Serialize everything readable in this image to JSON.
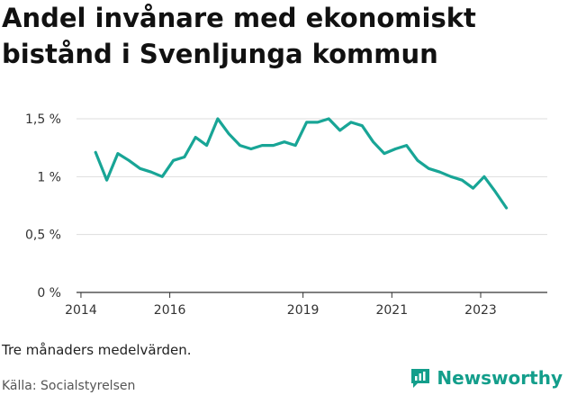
{
  "title": "Andel invånare med ekonomiskt bistånd i Svenljunga kommun",
  "footnote": "Tre månaders medelvärden.",
  "source": "Källa: Socialstyrelsen",
  "brand": {
    "name": "Newsworthy",
    "icon": "bar-chart-icon"
  },
  "colors": {
    "line": "#18a596",
    "brand": "#139e8b",
    "grid": "#dddddd"
  },
  "chart_data": {
    "type": "line",
    "title": "Andel invånare med ekonomiskt bistånd i Svenljunga kommun",
    "xlabel": "",
    "ylabel": "",
    "xlim": [
      2013.9,
      2024.5
    ],
    "ylim": [
      0,
      1.5
    ],
    "grid": true,
    "legend": "none",
    "x_ticks": [
      {
        "value": 2014,
        "label": "2014"
      },
      {
        "value": 2016,
        "label": "2016"
      },
      {
        "value": 2019,
        "label": "2019"
      },
      {
        "value": 2021,
        "label": "2021"
      },
      {
        "value": 2023,
        "label": "2023"
      }
    ],
    "y_ticks": [
      {
        "value": 0,
        "label": "0 %"
      },
      {
        "value": 0.5,
        "label": "0,5 %"
      },
      {
        "value": 1.0,
        "label": "1 %"
      },
      {
        "value": 1.5,
        "label": "1,5 %"
      }
    ],
    "series": [
      {
        "x": [
          2014.33,
          2014.58,
          2014.83,
          2015.08,
          2015.33,
          2015.58,
          2015.83,
          2016.08,
          2016.33,
          2016.58,
          2016.83,
          2017.08,
          2017.33,
          2017.58,
          2017.83,
          2018.08,
          2018.33,
          2018.58,
          2018.83,
          2019.08,
          2019.33,
          2019.58,
          2019.83,
          2020.08,
          2020.33,
          2020.58,
          2020.83,
          2021.08,
          2021.33,
          2021.58,
          2021.83,
          2022.08,
          2022.33,
          2022.58,
          2022.83,
          2023.08,
          2023.33,
          2023.58
        ],
        "values": [
          1.21,
          0.97,
          1.2,
          1.14,
          1.07,
          1.04,
          1.0,
          1.14,
          1.17,
          1.34,
          1.27,
          1.5,
          1.37,
          1.27,
          1.24,
          1.27,
          1.27,
          1.3,
          1.27,
          1.47,
          1.47,
          1.5,
          1.4,
          1.47,
          1.44,
          1.3,
          1.2,
          1.24,
          1.27,
          1.14,
          1.07,
          1.04,
          1.0,
          0.97,
          0.9,
          1.0,
          0.87,
          0.73
        ]
      }
    ]
  }
}
